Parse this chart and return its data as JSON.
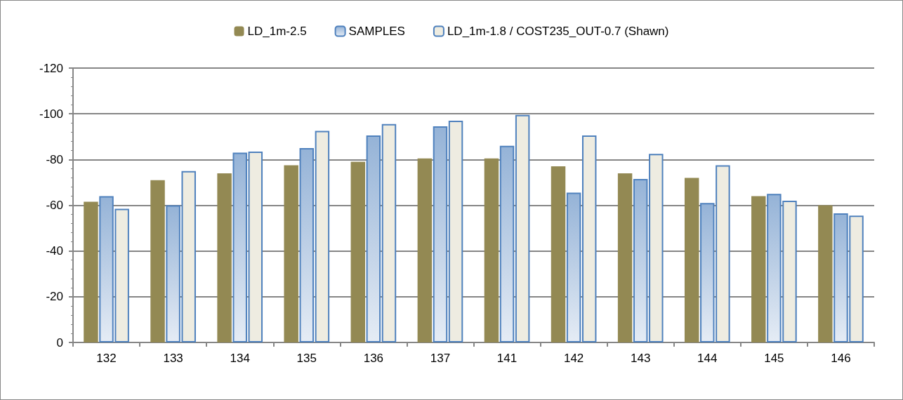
{
  "chart_data": {
    "type": "bar",
    "categories": [
      "132",
      "133",
      "134",
      "135",
      "136",
      "137",
      "141",
      "142",
      "143",
      "144",
      "145",
      "146"
    ],
    "series": [
      {
        "name": "LD_1m-2.5",
        "color": "#938953",
        "values": [
          -61.5,
          -71,
          -74,
          -77.5,
          -79,
          -80.5,
          -80.5,
          -77,
          -74,
          -72,
          -64,
          -60
        ]
      },
      {
        "name": "SAMPLES",
        "color": "#4f81bd",
        "values": [
          -64,
          -60,
          -83,
          -85,
          -90.5,
          -94.5,
          -86,
          -65.5,
          -71.5,
          -61,
          -65,
          -56.5
        ]
      },
      {
        "name": "LD_1m-1.8 / COST235_OUT-0.7 (Shawn)",
        "color": "#eeece1",
        "values": [
          -58.5,
          -75,
          -83.5,
          -92.5,
          -95.5,
          -97,
          -99.5,
          -90.5,
          -82.5,
          -77.5,
          -62,
          -55.5
        ]
      }
    ],
    "ylim": [
      0,
      -120
    ],
    "yticks": [
      0,
      -20,
      -40,
      -60,
      -80,
      -100,
      -120
    ],
    "grid": "y",
    "legend": "top"
  }
}
